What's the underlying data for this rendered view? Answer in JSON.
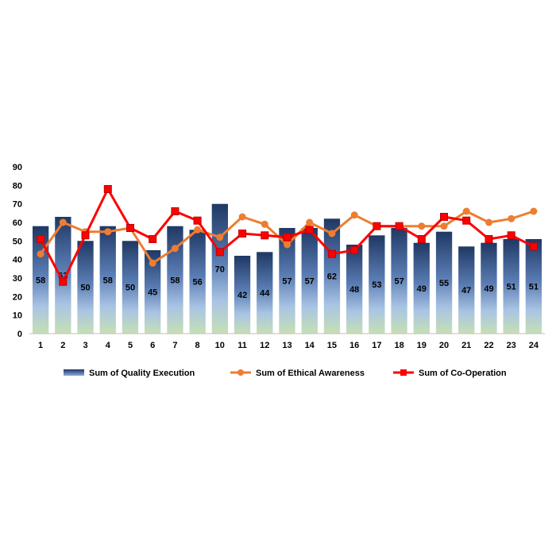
{
  "chart_data": {
    "type": "bar",
    "title": "",
    "xlabel": "",
    "ylabel": "",
    "ylim": [
      0,
      90
    ],
    "yticks": [
      0,
      10,
      20,
      30,
      40,
      50,
      60,
      70,
      80,
      90
    ],
    "grid": false,
    "legend_position": "bottom",
    "categories": [
      "1",
      "2",
      "3",
      "4",
      "5",
      "6",
      "7",
      "8",
      "10",
      "11",
      "12",
      "13",
      "14",
      "15",
      "16",
      "17",
      "18",
      "19",
      "20",
      "21",
      "22",
      "23",
      "24"
    ],
    "series": [
      {
        "name": "Sum of Quality Execution",
        "kind": "bar",
        "color_top": "#1f3864",
        "color_bottom": "#c6e0b4",
        "show_data_labels": true,
        "values": [
          58,
          63,
          50,
          58,
          50,
          45,
          58,
          56,
          70,
          42,
          44,
          57,
          57,
          62,
          48,
          53,
          57,
          49,
          55,
          47,
          49,
          51,
          51
        ]
      },
      {
        "name": "Sum of Ethical Awareness",
        "kind": "line",
        "color": "#ed7d31",
        "marker": "circle",
        "values": [
          43,
          60,
          55,
          55,
          57,
          38,
          46,
          56,
          52,
          63,
          59,
          48,
          60,
          54,
          64,
          58,
          58,
          58,
          58,
          66,
          60,
          62,
          66
        ]
      },
      {
        "name": "Sum of Co-Operation",
        "kind": "line",
        "color": "#ff0000",
        "marker": "square",
        "values": [
          51,
          28,
          53,
          78,
          57,
          51,
          66,
          61,
          44,
          54,
          53,
          52,
          56,
          43,
          45,
          58,
          58,
          51,
          63,
          61,
          51,
          53,
          47
        ]
      }
    ]
  }
}
